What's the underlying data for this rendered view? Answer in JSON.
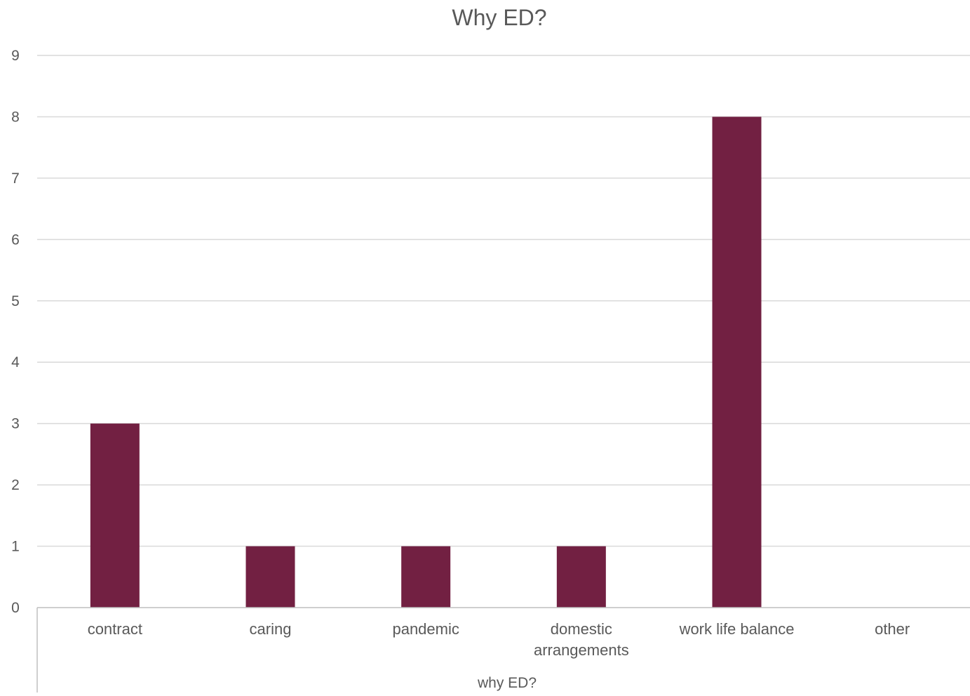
{
  "chart_data": {
    "type": "bar",
    "title": "Why ED?",
    "xlabel": "why ED?",
    "ylabel": "",
    "categories": [
      [
        "contract"
      ],
      [
        "caring"
      ],
      [
        "pandemic"
      ],
      [
        "domestic",
        "arrangements"
      ],
      [
        "work life balance"
      ],
      [
        "other"
      ]
    ],
    "values": [
      3,
      1,
      1,
      1,
      8,
      0
    ],
    "ylim": [
      0,
      9
    ],
    "yticks": [
      0,
      1,
      2,
      3,
      4,
      5,
      6,
      7,
      8,
      9
    ],
    "grid": true,
    "legend": "none",
    "colors": {
      "bar": "#722042",
      "grid": "#d9d9d9",
      "axis": "#bfbfbf",
      "text": "#595959"
    }
  }
}
